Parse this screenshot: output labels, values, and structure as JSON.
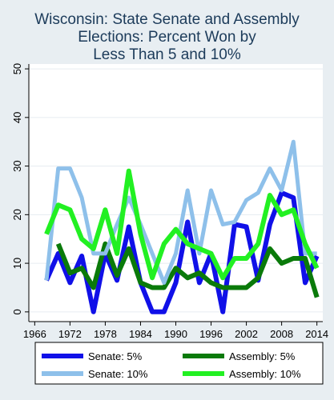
{
  "chart_data": {
    "type": "line",
    "title_lines": [
      "Wisconsin: State Senate and Assembly",
      "Elections: Percent Won by",
      "Less Than 5 and 10%"
    ],
    "xlabel": "",
    "ylabel": "",
    "x_ticks": [
      1966,
      1972,
      1978,
      1984,
      1990,
      1996,
      2002,
      2008,
      2014
    ],
    "y_ticks": [
      0,
      10,
      20,
      30,
      40,
      50
    ],
    "xlim": [
      1965,
      2015
    ],
    "ylim": [
      -2,
      51
    ],
    "grid": true,
    "legend_position": "bottom",
    "x": [
      1968,
      1970,
      1972,
      1974,
      1976,
      1978,
      1980,
      1982,
      1984,
      1986,
      1988,
      1990,
      1992,
      1994,
      1996,
      1998,
      2000,
      2002,
      2004,
      2006,
      2008,
      2010,
      2012,
      2014
    ],
    "series": [
      {
        "name": "Senate: 5%",
        "color": "#1010e8",
        "width": 6,
        "values": [
          6.5,
          12,
          6,
          11.5,
          0,
          12,
          6.5,
          17.5,
          6,
          0,
          0,
          6,
          18.5,
          6,
          12,
          0,
          18,
          17.5,
          6.5,
          18,
          24.5,
          23.5,
          6,
          11.5
        ]
      },
      {
        "name": "Assembly: 5%",
        "color": "#0a7a0a",
        "width": 6,
        "values": [
          null,
          14,
          8,
          9,
          5,
          14,
          7.5,
          13,
          6,
          5,
          5,
          9,
          7,
          8,
          6,
          5,
          5,
          5,
          7,
          13,
          10,
          11,
          11,
          3
        ]
      },
      {
        "name": "Senate: 10%",
        "color": "#8ec0ea",
        "width": 5,
        "values": [
          6.5,
          29.5,
          29.5,
          23.5,
          12,
          12,
          18,
          23.5,
          18,
          12,
          6,
          12,
          25,
          12,
          25,
          18,
          18.5,
          23,
          24.5,
          29.5,
          25,
          35,
          12,
          12
        ]
      },
      {
        "name": "Assembly: 10%",
        "color": "#22f022",
        "width": 6,
        "values": [
          16,
          22,
          21,
          15,
          13,
          21,
          12,
          29,
          16,
          7,
          14,
          17,
          14,
          13,
          12,
          7,
          11,
          11,
          14,
          24,
          20,
          21,
          14,
          9
        ]
      }
    ]
  }
}
